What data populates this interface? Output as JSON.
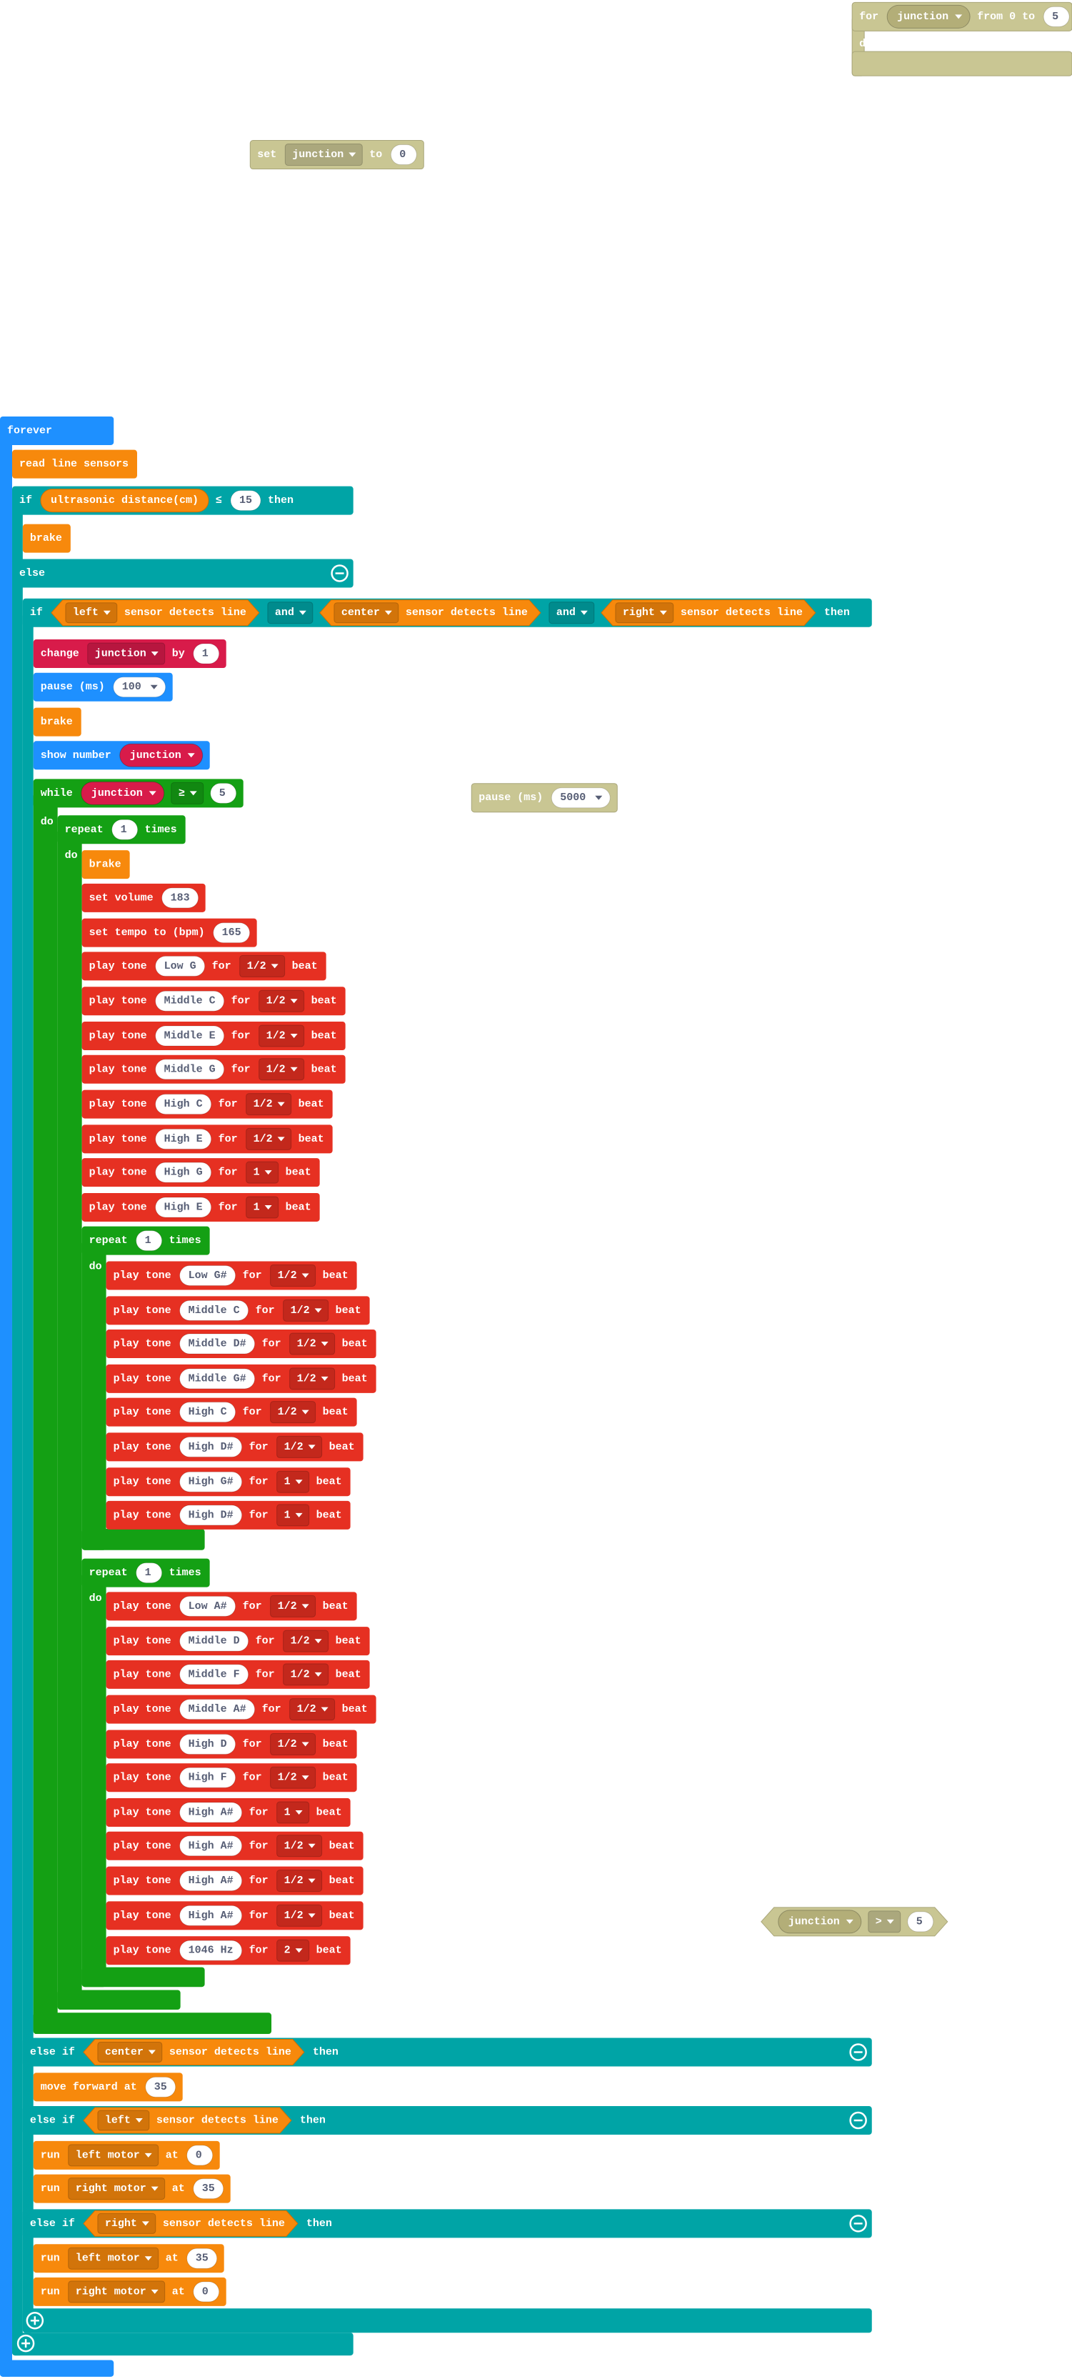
{
  "blocks": [
    [
      "for",
      "junction",
      "from 0 to",
      "5"
    ],
    [
      "do"
    ],
    [
      "set",
      "junction",
      "to",
      "0"
    ],
    [
      "pause (ms)",
      "5000"
    ],
    [
      "junction",
      ">",
      "5"
    ],
    [
      "forever"
    ],
    [
      "read line sensors"
    ],
    [
      "if",
      "ultrasonic distance(cm)",
      "≤",
      "15",
      "then"
    ],
    [
      "brake"
    ],
    [
      "else"
    ],
    [
      "if",
      "left",
      "sensor detects line",
      "and",
      "center",
      "sensor detects line",
      "and",
      "right",
      "sensor detects line",
      "then"
    ],
    [
      "change",
      "junction",
      "by",
      "1"
    ],
    [
      "pause (ms)",
      "100"
    ],
    [
      "brake"
    ],
    [
      "show number",
      "junction"
    ],
    [
      "while",
      "junction",
      "≥",
      "5"
    ],
    [
      "do"
    ],
    [
      "repeat",
      "1",
      "times"
    ],
    [
      "do"
    ],
    [
      "brake"
    ],
    [
      "set volume",
      "183"
    ],
    [
      "set tempo to (bpm)",
      "165"
    ],
    [
      "play tone",
      "Low G",
      "for",
      "1/2",
      "beat"
    ],
    [
      "play tone",
      "Middle C",
      "for",
      "1/2",
      "beat"
    ],
    [
      "play tone",
      "Middle E",
      "for",
      "1/2",
      "beat"
    ],
    [
      "play tone",
      "Middle G",
      "for",
      "1/2",
      "beat"
    ],
    [
      "play tone",
      "High C",
      "for",
      "1/2",
      "beat"
    ],
    [
      "play tone",
      "High E",
      "for",
      "1/2",
      "beat"
    ],
    [
      "play tone",
      "High G",
      "for",
      "1",
      "beat"
    ],
    [
      "play tone",
      "High E",
      "for",
      "1",
      "beat"
    ],
    [
      "repeat",
      "1",
      "times"
    ],
    [
      "do"
    ],
    [
      "play tone",
      "Low G#",
      "for",
      "1/2",
      "beat"
    ],
    [
      "play tone",
      "Middle C",
      "for",
      "1/2",
      "beat"
    ],
    [
      "play tone",
      "Middle D#",
      "for",
      "1/2",
      "beat"
    ],
    [
      "play tone",
      "Middle G#",
      "for",
      "1/2",
      "beat"
    ],
    [
      "play tone",
      "High C",
      "for",
      "1/2",
      "beat"
    ],
    [
      "play tone",
      "High D#",
      "for",
      "1/2",
      "beat"
    ],
    [
      "play tone",
      "High G#",
      "for",
      "1",
      "beat"
    ],
    [
      "play tone",
      "High D#",
      "for",
      "1",
      "beat"
    ],
    [
      "repeat",
      "1",
      "times"
    ],
    [
      "do"
    ],
    [
      "play tone",
      "Low A#",
      "for",
      "1/2",
      "beat"
    ],
    [
      "play tone",
      "Middle D",
      "for",
      "1/2",
      "beat"
    ],
    [
      "play tone",
      "Middle F",
      "for",
      "1/2",
      "beat"
    ],
    [
      "play tone",
      "Middle A#",
      "for",
      "1/2",
      "beat"
    ],
    [
      "play tone",
      "High D",
      "for",
      "1/2",
      "beat"
    ],
    [
      "play tone",
      "High F",
      "for",
      "1/2",
      "beat"
    ],
    [
      "play tone",
      "High A#",
      "for",
      "1",
      "beat"
    ],
    [
      "play tone",
      "High A#",
      "for",
      "1/2",
      "beat"
    ],
    [
      "play tone",
      "High A#",
      "for",
      "1/2",
      "beat"
    ],
    [
      "play tone",
      "High A#",
      "for",
      "1/2",
      "beat"
    ],
    [
      "play tone",
      "1046 Hz",
      "for",
      "2",
      "beat"
    ],
    [
      "else if",
      "center",
      "sensor detects line",
      "then"
    ],
    [
      "move forward at",
      "35"
    ],
    [
      "else if",
      "left",
      "sensor detects line",
      "then"
    ],
    [
      "run",
      "left motor",
      "at",
      "0"
    ],
    [
      "run",
      "right motor",
      "at",
      "35"
    ],
    [
      "else if",
      "right",
      "sensor detects line",
      "then"
    ],
    [
      "run",
      "left motor",
      "at",
      "35"
    ],
    [
      "run",
      "right motor",
      "at",
      "0"
    ]
  ]
}
